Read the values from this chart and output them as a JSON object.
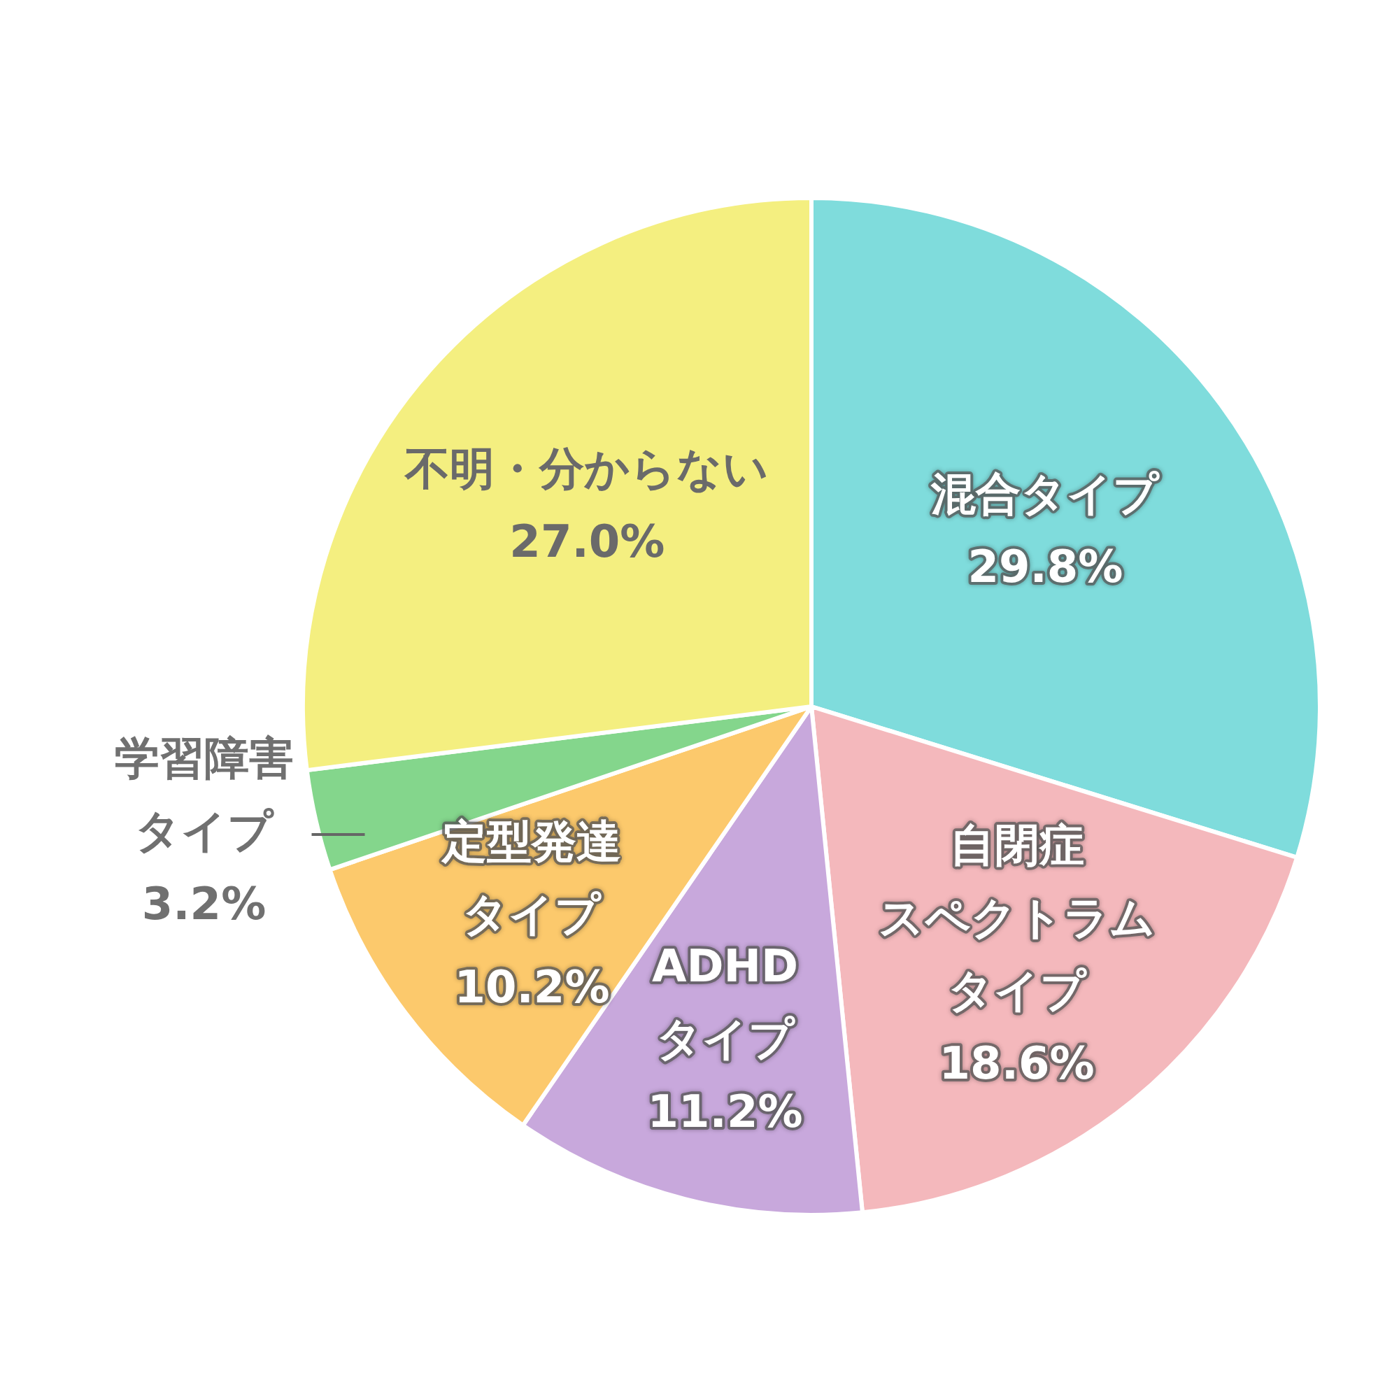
{
  "chart_data": {
    "type": "pie",
    "categories": [
      "混合タイプ",
      "自閉症スペクトラムタイプ",
      "ADHDタイプ",
      "定型発達タイプ",
      "学習障害タイプ",
      "不明・分からない"
    ],
    "values": [
      29.8,
      18.6,
      11.2,
      10.2,
      3.2,
      27.0
    ],
    "colors": [
      "#7fdcdc",
      "#f4b8bc",
      "#c8a8dc",
      "#fcc96c",
      "#84d68c",
      "#f4ef80"
    ],
    "value_labels": [
      "29.8%",
      "18.6%",
      "11.2%",
      "10.2%",
      "3.2%",
      "27.0%"
    ],
    "legend": false
  }
}
